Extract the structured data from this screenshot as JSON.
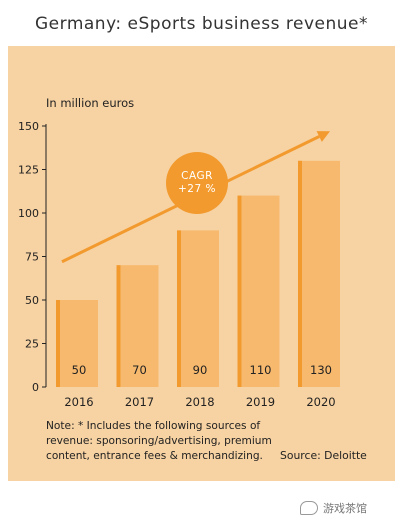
{
  "title": "Germany: eSports business revenue*",
  "chart_data": {
    "type": "bar",
    "unit_label": "In million euros",
    "categories": [
      "2016",
      "2017",
      "2018",
      "2019",
      "2020"
    ],
    "values": [
      50,
      70,
      90,
      110,
      130
    ],
    "ylim": [
      0,
      150
    ],
    "yticks": [
      0,
      25,
      50,
      75,
      100,
      125,
      150
    ],
    "grid": false,
    "bar_color": "#f7b96e",
    "bar_accent_color": "#f29a2e",
    "panel_color": "#f7d2a2",
    "arrow_color": "#f29a2e",
    "trend_arrow": {
      "start_value": 72,
      "end_value": 147
    },
    "annotation": {
      "line1": "CAGR",
      "line2": "+27 %"
    }
  },
  "note": "Note: * Includes the following sources of revenue: sponsoring/advertising, premium content, entrance fees & merchandizing.",
  "source": "Source: Deloitte",
  "watermark": "游戏茶馆"
}
